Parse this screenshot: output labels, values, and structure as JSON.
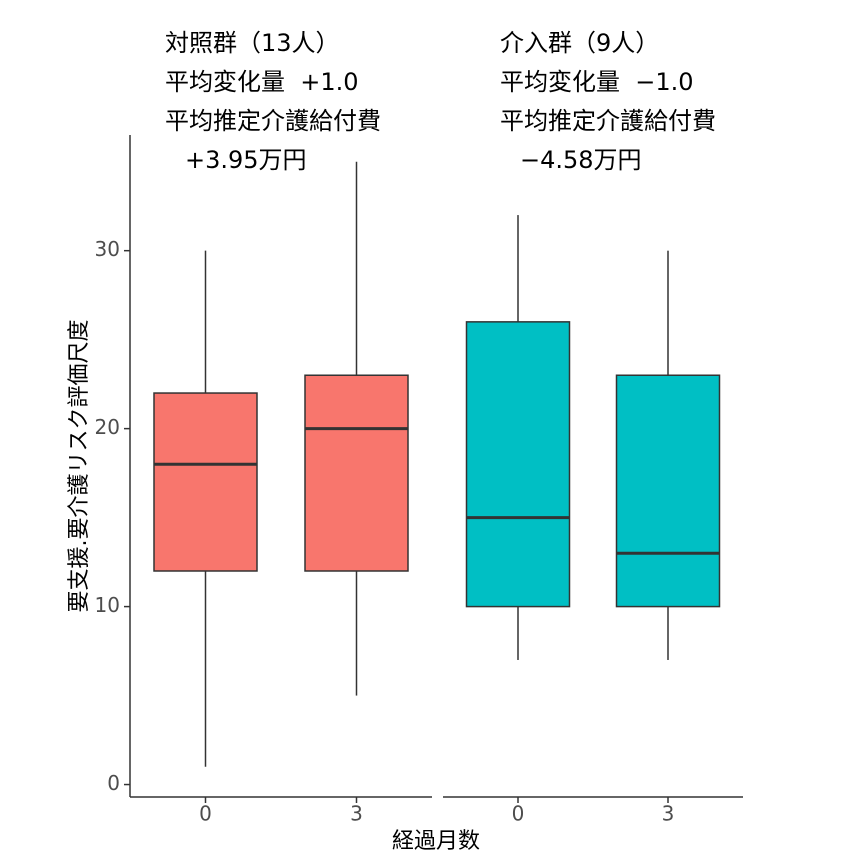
{
  "chart_data": {
    "type": "box",
    "ylabel": "要支援.要介護リスク評価尺度",
    "xlabel": "経過月数",
    "ylim": [
      -0.7,
      36.5
    ],
    "yticks": [
      0,
      10,
      20,
      30
    ],
    "facets": [
      {
        "annotation": [
          "対照群（13人）",
          "平均変化量  +1.0",
          "平均推定介護給付費",
          "+3.95万円"
        ],
        "color": "#f8766d",
        "categories": [
          "0",
          "3"
        ],
        "boxes": [
          {
            "min": 1,
            "q1": 12,
            "median": 18,
            "q3": 22,
            "max": 30
          },
          {
            "min": 5,
            "q1": 12,
            "median": 20,
            "q3": 23,
            "max": 35
          }
        ]
      },
      {
        "annotation": [
          "介入群（9人）",
          "平均変化量  −1.0",
          "平均推定介護給付費",
          "−4.58万円"
        ],
        "color": "#00bfc4",
        "categories": [
          "0",
          "3"
        ],
        "boxes": [
          {
            "min": 7,
            "q1": 10,
            "median": 15,
            "q3": 26,
            "max": 32
          },
          {
            "min": 7,
            "q1": 10,
            "median": 13,
            "q3": 23,
            "max": 30
          }
        ]
      }
    ]
  }
}
